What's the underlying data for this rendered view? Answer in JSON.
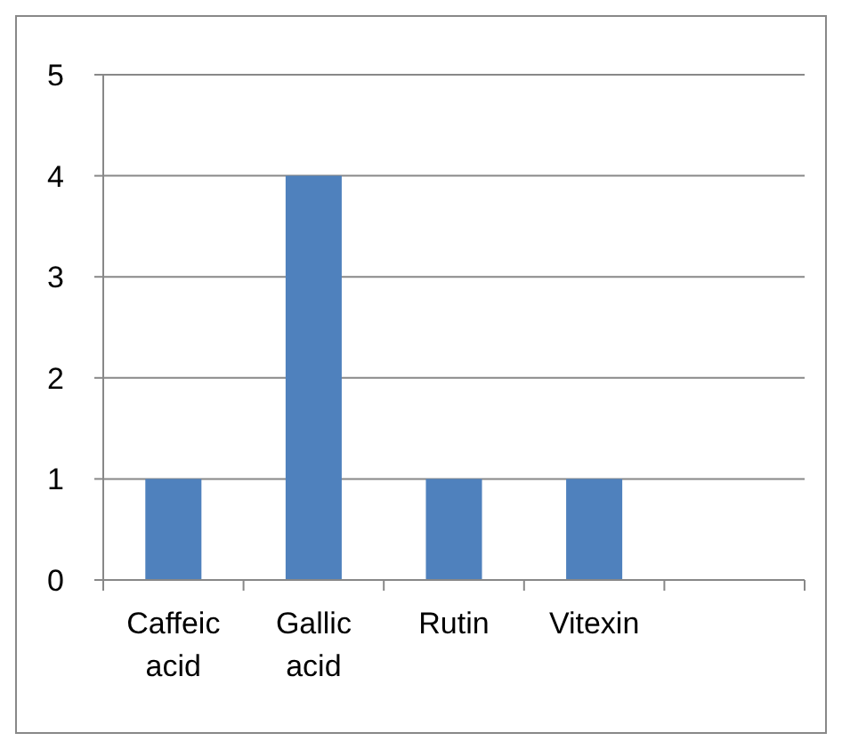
{
  "chart_data": {
    "type": "bar",
    "categories": [
      "Caffeic acid",
      "Gallic acid",
      "Rutin",
      "Vitexin",
      null
    ],
    "values": [
      1,
      4,
      1,
      1,
      null
    ],
    "color": "#4f81bd",
    "ylim": [
      0,
      5
    ],
    "yticks": [
      0,
      1,
      2,
      3,
      4,
      5
    ],
    "grid": "y"
  }
}
